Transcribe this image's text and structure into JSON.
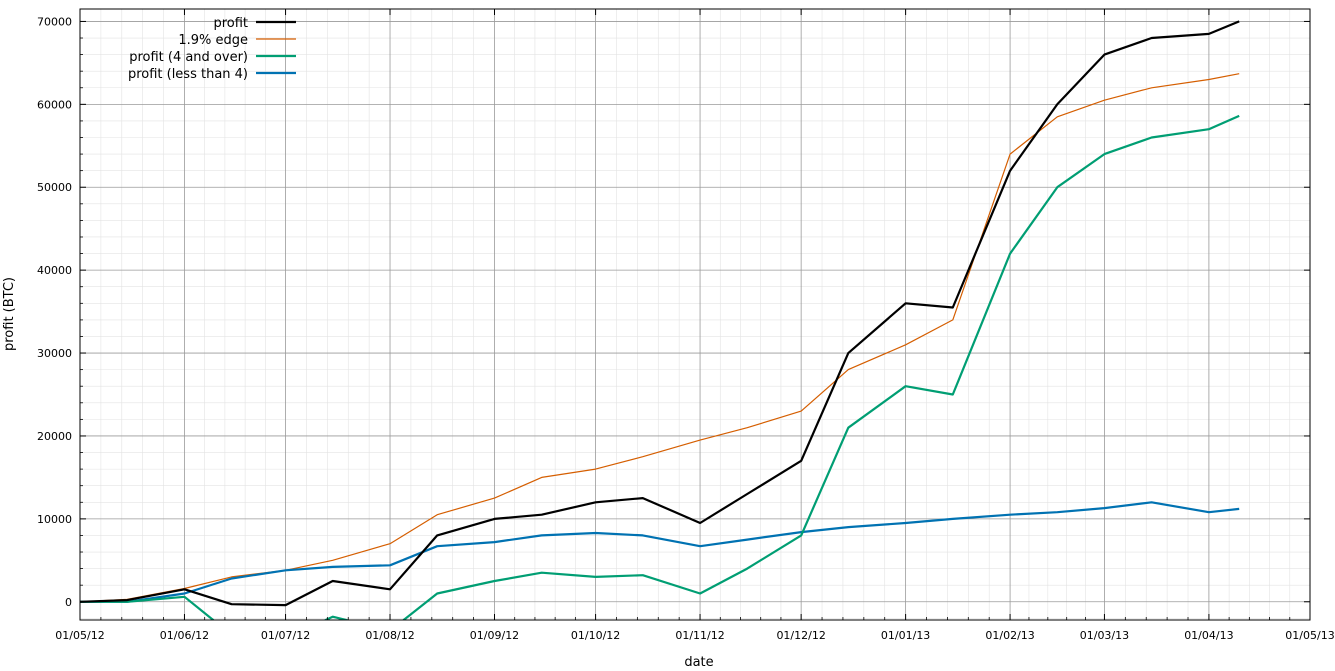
{
  "chart_data": {
    "type": "line",
    "title": "",
    "xlabel": "date",
    "ylabel": "profit (BTC)",
    "x_ticks": [
      "01/05/12",
      "01/06/12",
      "01/07/12",
      "01/08/12",
      "01/09/12",
      "01/10/12",
      "01/11/12",
      "01/12/12",
      "01/01/13",
      "01/02/13",
      "01/03/13",
      "01/04/13",
      "01/05/13"
    ],
    "y_ticks": [
      "0",
      "10000",
      "20000",
      "30000",
      "40000",
      "50000",
      "60000",
      "70000"
    ],
    "xlim": [
      "2012-05-01",
      "2013-05-01"
    ],
    "ylim": [
      -2200,
      71500
    ],
    "grid": true,
    "legend_position": "top-left",
    "x": [
      "2012-05-01",
      "2012-05-15",
      "2012-06-01",
      "2012-06-15",
      "2012-07-01",
      "2012-07-15",
      "2012-08-01",
      "2012-08-15",
      "2012-09-01",
      "2012-09-15",
      "2012-10-01",
      "2012-10-15",
      "2012-11-01",
      "2012-11-15",
      "2012-12-01",
      "2012-12-15",
      "2013-01-01",
      "2013-01-15",
      "2013-02-01",
      "2013-02-15",
      "2013-03-01",
      "2013-03-15",
      "2013-04-01",
      "2013-04-10"
    ],
    "series": [
      {
        "name": "profit",
        "color": "#000000",
        "width": 2.2,
        "values": [
          0,
          200,
          1500,
          -300,
          -400,
          2500,
          1500,
          8000,
          10000,
          10500,
          12000,
          12500,
          9500,
          13000,
          17000,
          30000,
          36000,
          35500,
          52000,
          60000,
          66000,
          68000,
          68500,
          70000
        ]
      },
      {
        "name": "1.9% edge",
        "color": "#d55e00",
        "width": 1.2,
        "values": [
          0,
          300,
          1600,
          3000,
          3800,
          5000,
          7000,
          10500,
          12500,
          15000,
          16000,
          17500,
          19500,
          21000,
          23000,
          28000,
          31000,
          34000,
          54000,
          58500,
          60500,
          62000,
          63000,
          63700
        ]
      },
      {
        "name": "profit (4 and over)",
        "color": "#009e73",
        "width": 2.2,
        "values": [
          0,
          0,
          600,
          -4000,
          -4500,
          -1800,
          -3500,
          1000,
          2500,
          3500,
          3000,
          3200,
          1000,
          4000,
          8000,
          21000,
          26000,
          25000,
          42000,
          50000,
          54000,
          56000,
          57000,
          58600
        ]
      },
      {
        "name": "profit (less than 4)",
        "color": "#0072b2",
        "width": 2.2,
        "values": [
          0,
          0,
          1000,
          2800,
          3800,
          4200,
          4400,
          6700,
          7200,
          8000,
          8300,
          8000,
          6700,
          7500,
          8400,
          9000,
          9500,
          10000,
          10500,
          10800,
          11300,
          12000,
          10800,
          11200
        ]
      }
    ]
  }
}
